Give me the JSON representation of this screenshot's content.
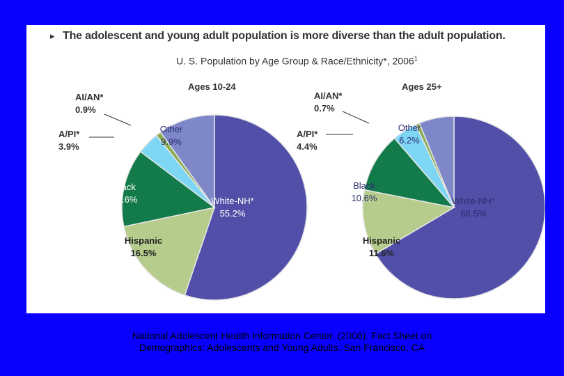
{
  "slide": {
    "headline": "The adolescent and young adult population is more diverse than the adult population.",
    "citation_line1": "National Adolescent Health Information Center. (2008). Fact Sheet on",
    "citation_line2": "Demographics:  Adolescents and Young Adults.  San Francisco, CA"
  },
  "chart_data": {
    "type": "pie",
    "title": "U. S. Population by Age Group & Race/Ethnicity*, 2006",
    "title_footnote": "1",
    "colors": {
      "White-NH*": "#514fa8",
      "Hispanic": "#b6cc8c",
      "Black": "#137a4a",
      "A/PI*": "#7ed6f5",
      "AI/AN*": "#8aad52",
      "Other": "#7e87c8"
    },
    "charts": [
      {
        "title": "Ages 10-24",
        "slices": [
          {
            "label": "White-NH*",
            "value": 55.2,
            "value_label": "55.2%"
          },
          {
            "label": "Hispanic",
            "value": 16.5,
            "value_label": "16.5%"
          },
          {
            "label": "Black",
            "value": 13.6,
            "value_label": "13.6%"
          },
          {
            "label": "A/PI*",
            "value": 3.9,
            "value_label": "3.9%"
          },
          {
            "label": "AI/AN*",
            "value": 0.9,
            "value_label": "0.9%"
          },
          {
            "label": "Other",
            "value": 9.9,
            "value_label": "9.9%"
          }
        ]
      },
      {
        "title": "Ages 25+",
        "slices": [
          {
            "label": "White-NH*",
            "value": 66.5,
            "value_label": "66.5%"
          },
          {
            "label": "Hispanic",
            "value": 11.6,
            "value_label": "11.6%"
          },
          {
            "label": "Black",
            "value": 10.6,
            "value_label": "10.6%"
          },
          {
            "label": "A/PI*",
            "value": 4.4,
            "value_label": "4.4%"
          },
          {
            "label": "AI/AN*",
            "value": 0.7,
            "value_label": "0.7%"
          },
          {
            "label": "Other",
            "value": 6.2,
            "value_label": "6.2%"
          }
        ]
      }
    ]
  }
}
